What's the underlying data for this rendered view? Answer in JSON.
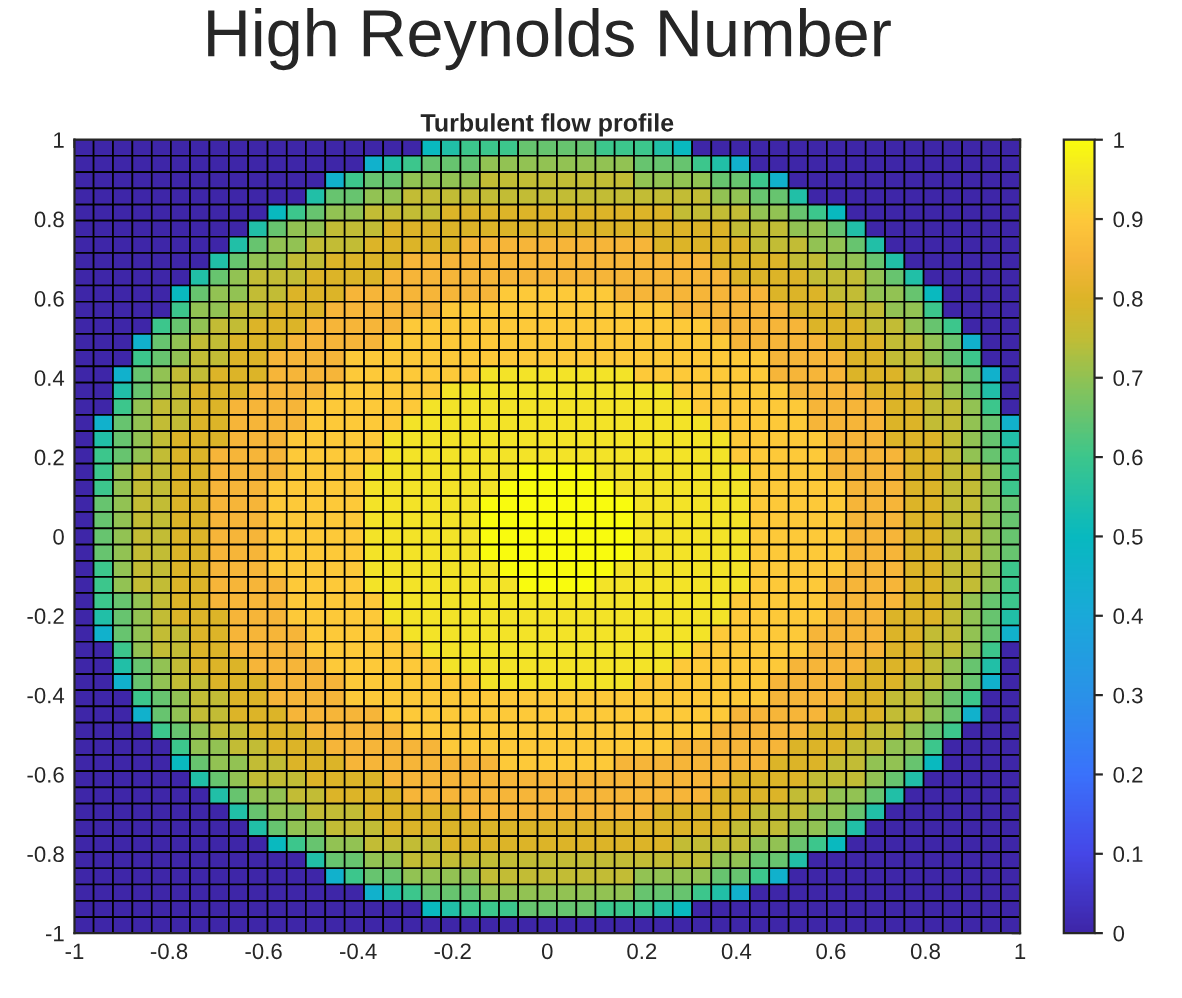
{
  "chart_data": {
    "type": "heatmap",
    "title": "High Reynolds Number",
    "subtitle": "Turbulent flow profile",
    "x": [
      -0.98,
      -0.939,
      -0.898,
      -0.857,
      -0.816,
      -0.776,
      -0.735,
      -0.694,
      -0.653,
      -0.612,
      -0.571,
      -0.531,
      -0.49,
      -0.449,
      -0.408,
      -0.367,
      -0.327,
      -0.286,
      -0.245,
      -0.204,
      -0.163,
      -0.122,
      -0.082,
      -0.041,
      0,
      0.041,
      0.082,
      0.122,
      0.163,
      0.204,
      0.245,
      0.286,
      0.327,
      0.367,
      0.408,
      0.449,
      0.49,
      0.531,
      0.571,
      0.612,
      0.653,
      0.694,
      0.735,
      0.776,
      0.816,
      0.857,
      0.898,
      0.939,
      0.98
    ],
    "y": [
      0.98,
      0.939,
      0.898,
      0.857,
      0.816,
      0.776,
      0.735,
      0.694,
      0.653,
      0.612,
      0.571,
      0.531,
      0.49,
      0.449,
      0.408,
      0.367,
      0.327,
      0.286,
      0.245,
      0.204,
      0.163,
      0.122,
      0.082,
      0.041,
      0,
      -0.041,
      -0.082,
      -0.122,
      -0.163,
      -0.204,
      -0.245,
      -0.286,
      -0.327,
      -0.367,
      -0.408,
      -0.449,
      -0.49,
      -0.531,
      -0.571,
      -0.612,
      -0.653,
      -0.694,
      -0.735,
      -0.776,
      -0.816,
      -0.857,
      -0.898,
      -0.939,
      -0.98
    ],
    "xlim": [
      -1,
      1
    ],
    "ylim": [
      -1,
      1
    ],
    "xticks": [
      -1,
      -0.8,
      -0.6,
      -0.4,
      -0.2,
      0,
      0.2,
      0.4,
      0.6,
      0.8,
      1
    ],
    "yticks": [
      -1,
      -0.8,
      -0.6,
      -0.4,
      -0.2,
      0,
      0.2,
      0.4,
      0.6,
      0.8,
      1
    ],
    "clim": [
      0,
      1
    ],
    "cticks": [
      0,
      0.1,
      0.2,
      0.3,
      0.4,
      0.5,
      0.6,
      0.7,
      0.8,
      0.9,
      1
    ],
    "cells": [
      [
        0,
        0,
        0,
        0,
        0,
        0,
        0,
        0,
        0,
        0,
        0,
        0,
        0,
        0,
        0,
        0,
        0,
        0,
        0.5,
        0.55,
        0.6,
        0.6,
        0.6,
        0.65,
        0.65,
        0.65,
        0.65,
        0.6,
        0.6,
        0.6,
        0.55,
        0.5,
        0,
        0,
        0,
        0,
        0,
        0,
        0,
        0,
        0,
        0,
        0,
        0,
        0,
        0,
        0,
        0,
        0
      ],
      [
        0,
        0,
        0,
        0,
        0,
        0,
        0,
        0,
        0,
        0,
        0,
        0,
        0,
        0,
        0,
        0.45,
        0.55,
        0.6,
        0.65,
        0.65,
        0.65,
        0.7,
        0.7,
        0.7,
        0.7,
        0.7,
        0.7,
        0.7,
        0.7,
        0.65,
        0.65,
        0.65,
        0.6,
        0.55,
        0.45,
        0,
        0,
        0,
        0,
        0,
        0,
        0,
        0,
        0,
        0,
        0,
        0,
        0,
        0
      ],
      [
        0,
        0,
        0,
        0,
        0,
        0,
        0,
        0,
        0,
        0,
        0,
        0,
        0,
        0.45,
        0.6,
        0.65,
        0.65,
        0.7,
        0.7,
        0.7,
        0.7,
        0.75,
        0.75,
        0.75,
        0.75,
        0.75,
        0.75,
        0.75,
        0.75,
        0.7,
        0.7,
        0.7,
        0.7,
        0.65,
        0.65,
        0.6,
        0.45,
        0,
        0,
        0,
        0,
        0,
        0,
        0,
        0,
        0,
        0,
        0,
        0
      ],
      [
        0,
        0,
        0,
        0,
        0,
        0,
        0,
        0,
        0,
        0,
        0,
        0,
        0.55,
        0.65,
        0.65,
        0.7,
        0.7,
        0.75,
        0.75,
        0.75,
        0.75,
        0.75,
        0.75,
        0.75,
        0.75,
        0.75,
        0.75,
        0.75,
        0.75,
        0.75,
        0.75,
        0.75,
        0.75,
        0.7,
        0.7,
        0.65,
        0.65,
        0.55,
        0,
        0,
        0,
        0,
        0,
        0,
        0,
        0,
        0,
        0,
        0
      ],
      [
        0,
        0,
        0,
        0,
        0,
        0,
        0,
        0,
        0,
        0,
        0.5,
        0.6,
        0.65,
        0.7,
        0.7,
        0.75,
        0.75,
        0.75,
        0.75,
        0.8,
        0.8,
        0.8,
        0.8,
        0.8,
        0.8,
        0.8,
        0.8,
        0.8,
        0.8,
        0.8,
        0.8,
        0.75,
        0.75,
        0.75,
        0.75,
        0.7,
        0.7,
        0.65,
        0.6,
        0.5,
        0,
        0,
        0,
        0,
        0,
        0,
        0,
        0,
        0
      ],
      [
        0,
        0,
        0,
        0,
        0,
        0,
        0,
        0,
        0,
        0.55,
        0.65,
        0.7,
        0.7,
        0.75,
        0.75,
        0.75,
        0.8,
        0.8,
        0.8,
        0.8,
        0.8,
        0.8,
        0.8,
        0.8,
        0.8,
        0.8,
        0.8,
        0.8,
        0.8,
        0.8,
        0.8,
        0.8,
        0.8,
        0.8,
        0.75,
        0.75,
        0.75,
        0.7,
        0.7,
        0.65,
        0.55,
        0,
        0,
        0,
        0,
        0,
        0,
        0,
        0
      ],
      [
        0,
        0,
        0,
        0,
        0,
        0,
        0,
        0,
        0.55,
        0.65,
        0.7,
        0.7,
        0.75,
        0.75,
        0.75,
        0.8,
        0.8,
        0.8,
        0.8,
        0.8,
        0.85,
        0.85,
        0.85,
        0.85,
        0.85,
        0.85,
        0.85,
        0.85,
        0.85,
        0.85,
        0.8,
        0.8,
        0.8,
        0.8,
        0.8,
        0.75,
        0.75,
        0.75,
        0.7,
        0.7,
        0.65,
        0.55,
        0,
        0,
        0,
        0,
        0,
        0,
        0
      ],
      [
        0,
        0,
        0,
        0,
        0,
        0,
        0,
        0.55,
        0.65,
        0.7,
        0.7,
        0.75,
        0.75,
        0.8,
        0.8,
        0.8,
        0.8,
        0.85,
        0.85,
        0.85,
        0.85,
        0.85,
        0.85,
        0.85,
        0.85,
        0.85,
        0.85,
        0.85,
        0.85,
        0.85,
        0.85,
        0.85,
        0.85,
        0.8,
        0.8,
        0.8,
        0.8,
        0.75,
        0.75,
        0.7,
        0.7,
        0.65,
        0.55,
        0,
        0,
        0,
        0,
        0,
        0
      ],
      [
        0,
        0,
        0,
        0,
        0,
        0,
        0.55,
        0.65,
        0.7,
        0.75,
        0.75,
        0.75,
        0.8,
        0.8,
        0.8,
        0.8,
        0.85,
        0.85,
        0.85,
        0.85,
        0.85,
        0.85,
        0.85,
        0.85,
        0.85,
        0.85,
        0.85,
        0.85,
        0.85,
        0.85,
        0.85,
        0.85,
        0.85,
        0.85,
        0.8,
        0.8,
        0.8,
        0.8,
        0.75,
        0.75,
        0.75,
        0.7,
        0.65,
        0.55,
        0,
        0,
        0,
        0,
        0
      ],
      [
        0,
        0,
        0,
        0,
        0,
        0.5,
        0.65,
        0.7,
        0.7,
        0.75,
        0.75,
        0.8,
        0.8,
        0.8,
        0.85,
        0.85,
        0.85,
        0.85,
        0.85,
        0.85,
        0.85,
        0.85,
        0.9,
        0.9,
        0.9,
        0.9,
        0.9,
        0.9,
        0.85,
        0.85,
        0.85,
        0.85,
        0.85,
        0.85,
        0.85,
        0.85,
        0.8,
        0.8,
        0.8,
        0.75,
        0.75,
        0.7,
        0.7,
        0.65,
        0.5,
        0,
        0,
        0,
        0
      ],
      [
        0,
        0,
        0,
        0,
        0,
        0.6,
        0.7,
        0.7,
        0.75,
        0.75,
        0.8,
        0.8,
        0.8,
        0.85,
        0.85,
        0.85,
        0.85,
        0.85,
        0.85,
        0.9,
        0.9,
        0.9,
        0.9,
        0.9,
        0.9,
        0.9,
        0.9,
        0.9,
        0.9,
        0.9,
        0.9,
        0.85,
        0.85,
        0.85,
        0.85,
        0.85,
        0.85,
        0.8,
        0.8,
        0.8,
        0.75,
        0.75,
        0.7,
        0.7,
        0.6,
        0,
        0,
        0,
        0
      ],
      [
        0,
        0,
        0,
        0,
        0.6,
        0.65,
        0.7,
        0.75,
        0.75,
        0.8,
        0.8,
        0.8,
        0.85,
        0.85,
        0.85,
        0.85,
        0.85,
        0.9,
        0.9,
        0.9,
        0.9,
        0.9,
        0.9,
        0.9,
        0.9,
        0.9,
        0.9,
        0.9,
        0.9,
        0.9,
        0.9,
        0.9,
        0.9,
        0.85,
        0.85,
        0.85,
        0.85,
        0.85,
        0.8,
        0.8,
        0.8,
        0.75,
        0.75,
        0.7,
        0.65,
        0.6,
        0,
        0,
        0
      ],
      [
        0,
        0,
        0,
        0.45,
        0.65,
        0.7,
        0.75,
        0.75,
        0.8,
        0.8,
        0.8,
        0.85,
        0.85,
        0.85,
        0.85,
        0.85,
        0.9,
        0.9,
        0.9,
        0.9,
        0.9,
        0.9,
        0.9,
        0.9,
        0.9,
        0.9,
        0.9,
        0.9,
        0.9,
        0.9,
        0.9,
        0.9,
        0.9,
        0.9,
        0.85,
        0.85,
        0.85,
        0.85,
        0.85,
        0.8,
        0.8,
        0.8,
        0.75,
        0.75,
        0.7,
        0.65,
        0.45,
        0,
        0
      ],
      [
        0,
        0,
        0,
        0.6,
        0.65,
        0.7,
        0.75,
        0.75,
        0.8,
        0.8,
        0.85,
        0.85,
        0.85,
        0.85,
        0.9,
        0.9,
        0.9,
        0.9,
        0.9,
        0.9,
        0.9,
        0.9,
        0.9,
        0.9,
        0.9,
        0.9,
        0.9,
        0.9,
        0.9,
        0.9,
        0.9,
        0.9,
        0.9,
        0.9,
        0.9,
        0.9,
        0.85,
        0.85,
        0.85,
        0.85,
        0.8,
        0.8,
        0.75,
        0.75,
        0.7,
        0.65,
        0.6,
        0,
        0
      ],
      [
        0,
        0,
        0.45,
        0.65,
        0.7,
        0.75,
        0.75,
        0.8,
        0.8,
        0.8,
        0.85,
        0.85,
        0.85,
        0.85,
        0.9,
        0.9,
        0.9,
        0.9,
        0.9,
        0.9,
        0.9,
        0.95,
        0.95,
        0.95,
        0.95,
        0.95,
        0.95,
        0.95,
        0.95,
        0.9,
        0.9,
        0.9,
        0.9,
        0.9,
        0.9,
        0.9,
        0.85,
        0.85,
        0.85,
        0.85,
        0.8,
        0.8,
        0.8,
        0.75,
        0.75,
        0.7,
        0.65,
        0.45,
        0
      ],
      [
        0,
        0,
        0.55,
        0.65,
        0.7,
        0.75,
        0.8,
        0.8,
        0.8,
        0.85,
        0.85,
        0.85,
        0.85,
        0.9,
        0.9,
        0.9,
        0.9,
        0.9,
        0.9,
        0.95,
        0.95,
        0.95,
        0.95,
        0.95,
        0.95,
        0.95,
        0.95,
        0.95,
        0.95,
        0.95,
        0.95,
        0.9,
        0.9,
        0.9,
        0.9,
        0.9,
        0.9,
        0.85,
        0.85,
        0.85,
        0.85,
        0.8,
        0.8,
        0.8,
        0.75,
        0.7,
        0.65,
        0.55,
        0
      ],
      [
        0,
        0,
        0.6,
        0.7,
        0.75,
        0.75,
        0.8,
        0.8,
        0.85,
        0.85,
        0.85,
        0.85,
        0.9,
        0.9,
        0.9,
        0.9,
        0.9,
        0.9,
        0.95,
        0.95,
        0.95,
        0.95,
        0.95,
        0.95,
        0.95,
        0.95,
        0.95,
        0.95,
        0.95,
        0.95,
        0.95,
        0.95,
        0.9,
        0.9,
        0.9,
        0.9,
        0.9,
        0.9,
        0.85,
        0.85,
        0.85,
        0.85,
        0.8,
        0.8,
        0.75,
        0.75,
        0.7,
        0.6,
        0
      ],
      [
        0,
        0.45,
        0.65,
        0.7,
        0.75,
        0.75,
        0.8,
        0.8,
        0.85,
        0.85,
        0.85,
        0.85,
        0.9,
        0.9,
        0.9,
        0.9,
        0.9,
        0.95,
        0.95,
        0.95,
        0.95,
        0.95,
        0.95,
        0.95,
        0.95,
        0.95,
        0.95,
        0.95,
        0.95,
        0.95,
        0.95,
        0.95,
        0.95,
        0.9,
        0.9,
        0.9,
        0.9,
        0.9,
        0.85,
        0.85,
        0.85,
        0.85,
        0.8,
        0.8,
        0.75,
        0.75,
        0.7,
        0.65,
        0.45
      ],
      [
        0,
        0.55,
        0.65,
        0.7,
        0.75,
        0.8,
        0.8,
        0.8,
        0.85,
        0.85,
        0.85,
        0.9,
        0.9,
        0.9,
        0.9,
        0.9,
        0.95,
        0.95,
        0.95,
        0.95,
        0.95,
        0.95,
        0.95,
        0.95,
        0.95,
        0.95,
        0.95,
        0.95,
        0.95,
        0.95,
        0.95,
        0.95,
        0.95,
        0.95,
        0.9,
        0.9,
        0.9,
        0.9,
        0.9,
        0.85,
        0.85,
        0.85,
        0.8,
        0.8,
        0.8,
        0.75,
        0.7,
        0.65,
        0.55
      ],
      [
        0,
        0.6,
        0.65,
        0.7,
        0.75,
        0.8,
        0.8,
        0.85,
        0.85,
        0.85,
        0.85,
        0.9,
        0.9,
        0.9,
        0.9,
        0.9,
        0.95,
        0.95,
        0.95,
        0.95,
        0.95,
        0.95,
        0.95,
        0.95,
        0.95,
        0.95,
        0.95,
        0.95,
        0.95,
        0.95,
        0.95,
        0.95,
        0.95,
        0.95,
        0.9,
        0.9,
        0.9,
        0.9,
        0.9,
        0.85,
        0.85,
        0.85,
        0.85,
        0.8,
        0.8,
        0.75,
        0.7,
        0.65,
        0.6
      ],
      [
        0,
        0.6,
        0.7,
        0.75,
        0.75,
        0.8,
        0.8,
        0.85,
        0.85,
        0.85,
        0.85,
        0.9,
        0.9,
        0.9,
        0.9,
        0.95,
        0.95,
        0.95,
        0.95,
        0.95,
        0.95,
        0.95,
        0.95,
        1,
        1,
        1,
        1,
        0.95,
        0.95,
        0.95,
        0.95,
        0.95,
        0.95,
        0.95,
        0.95,
        0.9,
        0.9,
        0.9,
        0.9,
        0.85,
        0.85,
        0.85,
        0.85,
        0.8,
        0.8,
        0.75,
        0.75,
        0.7,
        0.6
      ],
      [
        0,
        0.6,
        0.7,
        0.75,
        0.75,
        0.8,
        0.8,
        0.85,
        0.85,
        0.85,
        0.9,
        0.9,
        0.9,
        0.9,
        0.9,
        0.95,
        0.95,
        0.95,
        0.95,
        0.95,
        0.95,
        0.95,
        1,
        1,
        1,
        1,
        1,
        1,
        0.95,
        0.95,
        0.95,
        0.95,
        0.95,
        0.95,
        0.95,
        0.9,
        0.9,
        0.9,
        0.9,
        0.9,
        0.85,
        0.85,
        0.85,
        0.8,
        0.8,
        0.75,
        0.75,
        0.7,
        0.6
      ],
      [
        0,
        0.65,
        0.7,
        0.75,
        0.75,
        0.8,
        0.8,
        0.85,
        0.85,
        0.85,
        0.9,
        0.9,
        0.9,
        0.9,
        0.9,
        0.95,
        0.95,
        0.95,
        0.95,
        0.95,
        0.95,
        1,
        1,
        1,
        1,
        1,
        1,
        1,
        1,
        0.95,
        0.95,
        0.95,
        0.95,
        0.95,
        0.95,
        0.9,
        0.9,
        0.9,
        0.9,
        0.9,
        0.85,
        0.85,
        0.85,
        0.8,
        0.8,
        0.75,
        0.75,
        0.7,
        0.65
      ],
      [
        0,
        0.65,
        0.7,
        0.75,
        0.75,
        0.8,
        0.8,
        0.85,
        0.85,
        0.85,
        0.9,
        0.9,
        0.9,
        0.9,
        0.9,
        0.95,
        0.95,
        0.95,
        0.95,
        0.95,
        0.95,
        1,
        1,
        1,
        1,
        1,
        1,
        1,
        1,
        0.95,
        0.95,
        0.95,
        0.95,
        0.95,
        0.95,
        0.9,
        0.9,
        0.9,
        0.9,
        0.9,
        0.85,
        0.85,
        0.85,
        0.8,
        0.8,
        0.75,
        0.75,
        0.7,
        0.65
      ],
      [
        0,
        0.65,
        0.7,
        0.75,
        0.75,
        0.8,
        0.8,
        0.85,
        0.85,
        0.85,
        0.9,
        0.9,
        0.9,
        0.9,
        0.9,
        0.95,
        0.95,
        0.95,
        0.95,
        0.95,
        0.95,
        1,
        1,
        1,
        1,
        1,
        1,
        1,
        1,
        0.95,
        0.95,
        0.95,
        0.95,
        0.95,
        0.95,
        0.9,
        0.9,
        0.9,
        0.9,
        0.9,
        0.85,
        0.85,
        0.85,
        0.8,
        0.8,
        0.75,
        0.75,
        0.7,
        0.65
      ],
      [
        0,
        0.65,
        0.7,
        0.75,
        0.75,
        0.8,
        0.8,
        0.85,
        0.85,
        0.85,
        0.9,
        0.9,
        0.9,
        0.9,
        0.9,
        0.95,
        0.95,
        0.95,
        0.95,
        0.95,
        0.95,
        1,
        1,
        1,
        1,
        1,
        1,
        1,
        1,
        0.95,
        0.95,
        0.95,
        0.95,
        0.95,
        0.95,
        0.9,
        0.9,
        0.9,
        0.9,
        0.9,
        0.85,
        0.85,
        0.85,
        0.8,
        0.8,
        0.75,
        0.75,
        0.7,
        0.65
      ],
      [
        0,
        0.6,
        0.7,
        0.75,
        0.75,
        0.8,
        0.8,
        0.85,
        0.85,
        0.85,
        0.9,
        0.9,
        0.9,
        0.9,
        0.9,
        0.95,
        0.95,
        0.95,
        0.95,
        0.95,
        0.95,
        0.95,
        1,
        1,
        1,
        1,
        1,
        1,
        0.95,
        0.95,
        0.95,
        0.95,
        0.95,
        0.95,
        0.95,
        0.9,
        0.9,
        0.9,
        0.9,
        0.9,
        0.85,
        0.85,
        0.85,
        0.8,
        0.8,
        0.75,
        0.75,
        0.7,
        0.6
      ],
      [
        0,
        0.6,
        0.7,
        0.75,
        0.75,
        0.8,
        0.8,
        0.85,
        0.85,
        0.85,
        0.85,
        0.9,
        0.9,
        0.9,
        0.9,
        0.95,
        0.95,
        0.95,
        0.95,
        0.95,
        0.95,
        0.95,
        0.95,
        1,
        1,
        1,
        1,
        0.95,
        0.95,
        0.95,
        0.95,
        0.95,
        0.95,
        0.95,
        0.95,
        0.9,
        0.9,
        0.9,
        0.9,
        0.85,
        0.85,
        0.85,
        0.85,
        0.8,
        0.8,
        0.75,
        0.75,
        0.7,
        0.6
      ],
      [
        0,
        0.6,
        0.65,
        0.7,
        0.75,
        0.8,
        0.8,
        0.85,
        0.85,
        0.85,
        0.85,
        0.9,
        0.9,
        0.9,
        0.9,
        0.9,
        0.95,
        0.95,
        0.95,
        0.95,
        0.95,
        0.95,
        0.95,
        0.95,
        0.95,
        0.95,
        0.95,
        0.95,
        0.95,
        0.95,
        0.95,
        0.95,
        0.95,
        0.95,
        0.9,
        0.9,
        0.9,
        0.9,
        0.9,
        0.85,
        0.85,
        0.85,
        0.85,
        0.8,
        0.8,
        0.75,
        0.7,
        0.65,
        0.6
      ],
      [
        0,
        0.55,
        0.65,
        0.7,
        0.75,
        0.8,
        0.8,
        0.8,
        0.85,
        0.85,
        0.85,
        0.9,
        0.9,
        0.9,
        0.9,
        0.9,
        0.95,
        0.95,
        0.95,
        0.95,
        0.95,
        0.95,
        0.95,
        0.95,
        0.95,
        0.95,
        0.95,
        0.95,
        0.95,
        0.95,
        0.95,
        0.95,
        0.95,
        0.95,
        0.9,
        0.9,
        0.9,
        0.9,
        0.9,
        0.85,
        0.85,
        0.85,
        0.8,
        0.8,
        0.8,
        0.75,
        0.7,
        0.65,
        0.55
      ],
      [
        0,
        0.45,
        0.65,
        0.7,
        0.75,
        0.75,
        0.8,
        0.8,
        0.85,
        0.85,
        0.85,
        0.85,
        0.9,
        0.9,
        0.9,
        0.9,
        0.9,
        0.95,
        0.95,
        0.95,
        0.95,
        0.95,
        0.95,
        0.95,
        0.95,
        0.95,
        0.95,
        0.95,
        0.95,
        0.95,
        0.95,
        0.95,
        0.95,
        0.9,
        0.9,
        0.9,
        0.9,
        0.9,
        0.85,
        0.85,
        0.85,
        0.85,
        0.8,
        0.8,
        0.75,
        0.75,
        0.7,
        0.65,
        0.45
      ],
      [
        0,
        0,
        0.6,
        0.7,
        0.75,
        0.75,
        0.8,
        0.8,
        0.85,
        0.85,
        0.85,
        0.85,
        0.9,
        0.9,
        0.9,
        0.9,
        0.9,
        0.9,
        0.95,
        0.95,
        0.95,
        0.95,
        0.95,
        0.95,
        0.95,
        0.95,
        0.95,
        0.95,
        0.95,
        0.95,
        0.95,
        0.95,
        0.9,
        0.9,
        0.9,
        0.9,
        0.9,
        0.9,
        0.85,
        0.85,
        0.85,
        0.85,
        0.8,
        0.8,
        0.75,
        0.75,
        0.7,
        0.6,
        0
      ],
      [
        0,
        0,
        0.55,
        0.65,
        0.7,
        0.75,
        0.8,
        0.8,
        0.8,
        0.85,
        0.85,
        0.85,
        0.85,
        0.9,
        0.9,
        0.9,
        0.9,
        0.9,
        0.9,
        0.95,
        0.95,
        0.95,
        0.95,
        0.95,
        0.95,
        0.95,
        0.95,
        0.95,
        0.95,
        0.95,
        0.95,
        0.9,
        0.9,
        0.9,
        0.9,
        0.9,
        0.9,
        0.85,
        0.85,
        0.85,
        0.85,
        0.8,
        0.8,
        0.8,
        0.75,
        0.7,
        0.65,
        0.55,
        0
      ],
      [
        0,
        0,
        0.45,
        0.65,
        0.7,
        0.75,
        0.75,
        0.8,
        0.8,
        0.8,
        0.85,
        0.85,
        0.85,
        0.85,
        0.9,
        0.9,
        0.9,
        0.9,
        0.9,
        0.9,
        0.9,
        0.95,
        0.95,
        0.95,
        0.95,
        0.95,
        0.95,
        0.95,
        0.95,
        0.9,
        0.9,
        0.9,
        0.9,
        0.9,
        0.9,
        0.9,
        0.85,
        0.85,
        0.85,
        0.85,
        0.8,
        0.8,
        0.8,
        0.75,
        0.75,
        0.7,
        0.65,
        0.45,
        0
      ],
      [
        0,
        0,
        0,
        0.6,
        0.65,
        0.7,
        0.75,
        0.75,
        0.8,
        0.8,
        0.85,
        0.85,
        0.85,
        0.85,
        0.9,
        0.9,
        0.9,
        0.9,
        0.9,
        0.9,
        0.9,
        0.9,
        0.9,
        0.9,
        0.9,
        0.9,
        0.9,
        0.9,
        0.9,
        0.9,
        0.9,
        0.9,
        0.9,
        0.9,
        0.9,
        0.9,
        0.85,
        0.85,
        0.85,
        0.85,
        0.8,
        0.8,
        0.75,
        0.75,
        0.7,
        0.65,
        0.6,
        0,
        0
      ],
      [
        0,
        0,
        0,
        0.45,
        0.65,
        0.7,
        0.75,
        0.75,
        0.8,
        0.8,
        0.8,
        0.85,
        0.85,
        0.85,
        0.85,
        0.85,
        0.9,
        0.9,
        0.9,
        0.9,
        0.9,
        0.9,
        0.9,
        0.9,
        0.9,
        0.9,
        0.9,
        0.9,
        0.9,
        0.9,
        0.9,
        0.9,
        0.9,
        0.9,
        0.85,
        0.85,
        0.85,
        0.85,
        0.85,
        0.8,
        0.8,
        0.8,
        0.75,
        0.75,
        0.7,
        0.65,
        0.45,
        0,
        0
      ],
      [
        0,
        0,
        0,
        0,
        0.6,
        0.65,
        0.7,
        0.75,
        0.75,
        0.8,
        0.8,
        0.8,
        0.85,
        0.85,
        0.85,
        0.85,
        0.85,
        0.9,
        0.9,
        0.9,
        0.9,
        0.9,
        0.9,
        0.9,
        0.9,
        0.9,
        0.9,
        0.9,
        0.9,
        0.9,
        0.9,
        0.9,
        0.9,
        0.85,
        0.85,
        0.85,
        0.85,
        0.85,
        0.8,
        0.8,
        0.8,
        0.75,
        0.75,
        0.7,
        0.65,
        0.6,
        0,
        0,
        0
      ],
      [
        0,
        0,
        0,
        0,
        0,
        0.6,
        0.7,
        0.7,
        0.75,
        0.75,
        0.8,
        0.8,
        0.8,
        0.85,
        0.85,
        0.85,
        0.85,
        0.85,
        0.85,
        0.9,
        0.9,
        0.9,
        0.9,
        0.9,
        0.9,
        0.9,
        0.9,
        0.9,
        0.9,
        0.9,
        0.9,
        0.85,
        0.85,
        0.85,
        0.85,
        0.85,
        0.85,
        0.8,
        0.8,
        0.8,
        0.75,
        0.75,
        0.7,
        0.7,
        0.6,
        0,
        0,
        0,
        0
      ],
      [
        0,
        0,
        0,
        0,
        0,
        0.5,
        0.65,
        0.7,
        0.7,
        0.75,
        0.75,
        0.8,
        0.8,
        0.8,
        0.85,
        0.85,
        0.85,
        0.85,
        0.85,
        0.85,
        0.85,
        0.85,
        0.9,
        0.9,
        0.9,
        0.9,
        0.9,
        0.9,
        0.85,
        0.85,
        0.85,
        0.85,
        0.85,
        0.85,
        0.85,
        0.85,
        0.8,
        0.8,
        0.8,
        0.75,
        0.75,
        0.7,
        0.7,
        0.65,
        0.5,
        0,
        0,
        0,
        0
      ],
      [
        0,
        0,
        0,
        0,
        0,
        0,
        0.55,
        0.65,
        0.7,
        0.75,
        0.75,
        0.75,
        0.8,
        0.8,
        0.8,
        0.8,
        0.85,
        0.85,
        0.85,
        0.85,
        0.85,
        0.85,
        0.85,
        0.85,
        0.85,
        0.85,
        0.85,
        0.85,
        0.85,
        0.85,
        0.85,
        0.85,
        0.85,
        0.85,
        0.8,
        0.8,
        0.8,
        0.8,
        0.75,
        0.75,
        0.75,
        0.7,
        0.65,
        0.55,
        0,
        0,
        0,
        0,
        0
      ],
      [
        0,
        0,
        0,
        0,
        0,
        0,
        0,
        0.55,
        0.65,
        0.7,
        0.7,
        0.75,
        0.75,
        0.8,
        0.8,
        0.8,
        0.8,
        0.85,
        0.85,
        0.85,
        0.85,
        0.85,
        0.85,
        0.85,
        0.85,
        0.85,
        0.85,
        0.85,
        0.85,
        0.85,
        0.85,
        0.85,
        0.85,
        0.8,
        0.8,
        0.8,
        0.8,
        0.75,
        0.75,
        0.7,
        0.7,
        0.65,
        0.55,
        0,
        0,
        0,
        0,
        0,
        0
      ],
      [
        0,
        0,
        0,
        0,
        0,
        0,
        0,
        0,
        0.55,
        0.65,
        0.7,
        0.7,
        0.75,
        0.75,
        0.75,
        0.8,
        0.8,
        0.8,
        0.8,
        0.8,
        0.85,
        0.85,
        0.85,
        0.85,
        0.85,
        0.85,
        0.85,
        0.85,
        0.85,
        0.85,
        0.8,
        0.8,
        0.8,
        0.8,
        0.8,
        0.75,
        0.75,
        0.75,
        0.7,
        0.7,
        0.65,
        0.55,
        0,
        0,
        0,
        0,
        0,
        0,
        0
      ],
      [
        0,
        0,
        0,
        0,
        0,
        0,
        0,
        0,
        0,
        0.55,
        0.65,
        0.7,
        0.7,
        0.75,
        0.75,
        0.75,
        0.8,
        0.8,
        0.8,
        0.8,
        0.8,
        0.8,
        0.8,
        0.8,
        0.8,
        0.8,
        0.8,
        0.8,
        0.8,
        0.8,
        0.8,
        0.8,
        0.8,
        0.8,
        0.75,
        0.75,
        0.75,
        0.7,
        0.7,
        0.65,
        0.55,
        0,
        0,
        0,
        0,
        0,
        0,
        0,
        0
      ],
      [
        0,
        0,
        0,
        0,
        0,
        0,
        0,
        0,
        0,
        0,
        0.5,
        0.6,
        0.65,
        0.7,
        0.7,
        0.75,
        0.75,
        0.75,
        0.75,
        0.8,
        0.8,
        0.8,
        0.8,
        0.8,
        0.8,
        0.8,
        0.8,
        0.8,
        0.8,
        0.8,
        0.8,
        0.75,
        0.75,
        0.75,
        0.75,
        0.7,
        0.7,
        0.65,
        0.6,
        0.5,
        0,
        0,
        0,
        0,
        0,
        0,
        0,
        0,
        0
      ],
      [
        0,
        0,
        0,
        0,
        0,
        0,
        0,
        0,
        0,
        0,
        0,
        0,
        0.55,
        0.65,
        0.65,
        0.7,
        0.7,
        0.75,
        0.75,
        0.75,
        0.75,
        0.75,
        0.75,
        0.75,
        0.75,
        0.75,
        0.75,
        0.75,
        0.75,
        0.75,
        0.75,
        0.75,
        0.75,
        0.7,
        0.7,
        0.65,
        0.65,
        0.55,
        0,
        0,
        0,
        0,
        0,
        0,
        0,
        0,
        0,
        0,
        0
      ],
      [
        0,
        0,
        0,
        0,
        0,
        0,
        0,
        0,
        0,
        0,
        0,
        0,
        0,
        0.45,
        0.6,
        0.65,
        0.65,
        0.7,
        0.7,
        0.7,
        0.7,
        0.75,
        0.75,
        0.75,
        0.75,
        0.75,
        0.75,
        0.75,
        0.75,
        0.7,
        0.7,
        0.7,
        0.7,
        0.65,
        0.65,
        0.6,
        0.45,
        0,
        0,
        0,
        0,
        0,
        0,
        0,
        0,
        0,
        0,
        0,
        0
      ],
      [
        0,
        0,
        0,
        0,
        0,
        0,
        0,
        0,
        0,
        0,
        0,
        0,
        0,
        0,
        0,
        0.45,
        0.55,
        0.6,
        0.65,
        0.65,
        0.65,
        0.7,
        0.7,
        0.7,
        0.7,
        0.7,
        0.7,
        0.7,
        0.7,
        0.65,
        0.65,
        0.65,
        0.6,
        0.55,
        0.45,
        0,
        0,
        0,
        0,
        0,
        0,
        0,
        0,
        0,
        0,
        0,
        0,
        0,
        0
      ],
      [
        0,
        0,
        0,
        0,
        0,
        0,
        0,
        0,
        0,
        0,
        0,
        0,
        0,
        0,
        0,
        0,
        0,
        0,
        0.5,
        0.55,
        0.6,
        0.6,
        0.6,
        0.65,
        0.65,
        0.65,
        0.65,
        0.6,
        0.6,
        0.6,
        0.55,
        0.5,
        0,
        0,
        0,
        0,
        0,
        0,
        0,
        0,
        0,
        0,
        0,
        0,
        0,
        0,
        0,
        0,
        0
      ],
      [
        0,
        0,
        0,
        0,
        0,
        0,
        0,
        0,
        0,
        0,
        0,
        0,
        0,
        0,
        0,
        0,
        0,
        0,
        0,
        0,
        0,
        0,
        0,
        0,
        0,
        0,
        0,
        0,
        0,
        0,
        0,
        0,
        0,
        0,
        0,
        0,
        0,
        0,
        0,
        0,
        0,
        0,
        0,
        0,
        0,
        0,
        0,
        0,
        0
      ]
    ]
  }
}
